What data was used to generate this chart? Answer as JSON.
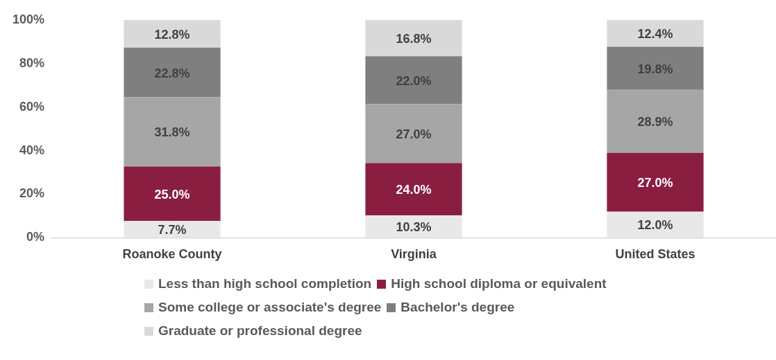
{
  "chart_data": {
    "type": "bar",
    "stacked": true,
    "categories": [
      "Roanoke County",
      "Virginia",
      "United States"
    ],
    "series": [
      {
        "name": "Less than high school completion",
        "color": "#e8e8e8",
        "values": [
          7.7,
          10.3,
          12.0
        ],
        "value_labels": [
          "7.7%",
          "10.3%",
          "12.0%"
        ]
      },
      {
        "name": "High school diploma or equivalent",
        "color": "#8a1e41",
        "values": [
          25.0,
          24.0,
          27.0
        ],
        "value_labels": [
          "25.0%",
          "24.0%",
          "27.0%"
        ]
      },
      {
        "name": "Some college or associate's degree",
        "color": "#a6a6a6",
        "values": [
          31.8,
          27.0,
          28.9
        ],
        "value_labels": [
          "31.8%",
          "27.0%",
          "28.9%"
        ]
      },
      {
        "name": "Bachelor's degree",
        "color": "#7f7f7f",
        "values": [
          22.8,
          22.0,
          19.8
        ],
        "value_labels": [
          "22.8%",
          "22.0%",
          "19.8%"
        ]
      },
      {
        "name": "Graduate or professional degree",
        "color": "#d9d9d9",
        "values": [
          12.8,
          16.8,
          12.4
        ],
        "value_labels": [
          "12.8%",
          "16.8%",
          "12.4%"
        ]
      }
    ],
    "ylim": [
      0,
      100
    ],
    "yticks": [
      {
        "value": 0,
        "label": "0%"
      },
      {
        "value": 20,
        "label": "20%"
      },
      {
        "value": 40,
        "label": "40%"
      },
      {
        "value": 60,
        "label": "60%"
      },
      {
        "value": 80,
        "label": "80%"
      },
      {
        "value": 100,
        "label": "100%"
      }
    ],
    "grid": false,
    "legend": "bottom"
  }
}
